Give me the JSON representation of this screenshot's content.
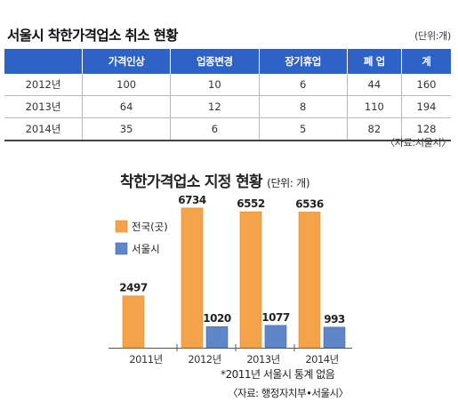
{
  "table": {
    "title": "서울시 착한가격업소 취소 현황",
    "unit": "(단위:개)",
    "headers": [
      "",
      "가격인상",
      "업종변경",
      "장기휴업",
      "폐 업",
      "계"
    ],
    "rows": [
      [
        "2012년",
        "100",
        "10",
        "6",
        "44",
        "160"
      ],
      [
        "2013년",
        "64",
        "12",
        "8",
        "110",
        "194"
      ],
      [
        "2014년",
        "35",
        "6",
        "5",
        "82",
        "128"
      ]
    ],
    "source": "〈자료:서울시〉"
  },
  "chart": {
    "title": "착한가격업소 지정 현황",
    "unit": "(단위: 개)",
    "note": "*2011년 서울시 통계 없음",
    "source": "〈자료: 행정자치부•서울시〉",
    "colors": {
      "national": "#f5a34a",
      "seoul": "#5f86c9"
    }
  },
  "chart_data": {
    "type": "bar",
    "title": "착한가격업소 지정 현황",
    "categories": [
      "2011년",
      "2012년",
      "2013년",
      "2014년"
    ],
    "series": [
      {
        "name": "전국(곳)",
        "values": [
          2497,
          6734,
          6552,
          6536
        ]
      },
      {
        "name": "서울시",
        "values": [
          null,
          1020,
          1077,
          993
        ]
      }
    ],
    "ylim": [
      0,
      7200
    ],
    "grid": false,
    "legend": "top-left"
  }
}
